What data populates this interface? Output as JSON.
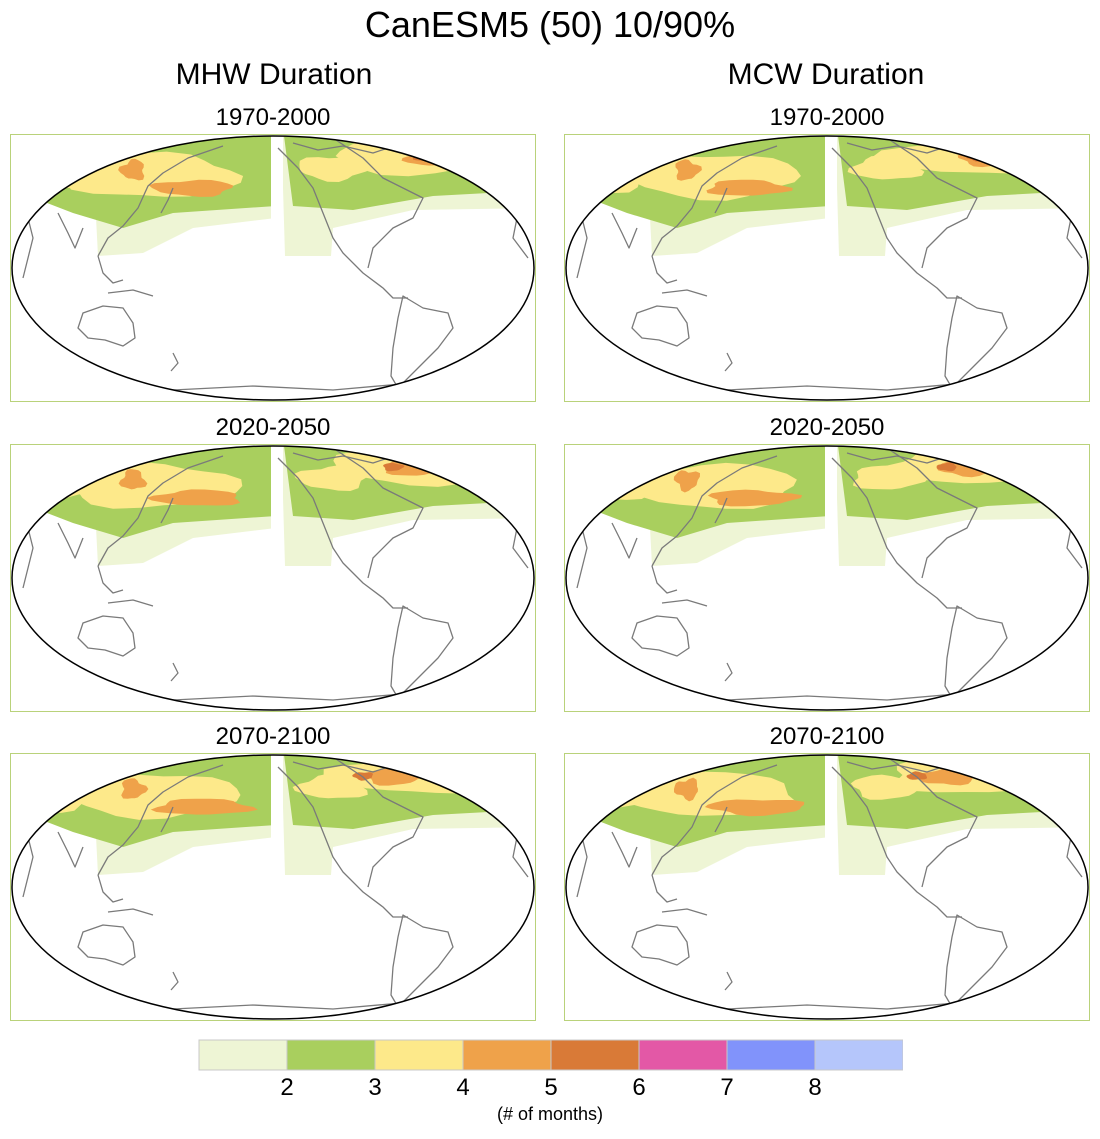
{
  "title": "CanESM5 (50) 10/90%",
  "columns": [
    {
      "title": "MHW Duration",
      "panels": [
        "1970-2000",
        "2020-2050",
        "2070-2100"
      ]
    },
    {
      "title": "MCW Duration",
      "panels": [
        "1970-2000",
        "2020-2050",
        "2070-2100"
      ]
    }
  ],
  "colorbar": {
    "colors": [
      "#eef5d5",
      "#a9cf5e",
      "#fde98a",
      "#efa24a",
      "#d97a37",
      "#e358a6",
      "#8193fb",
      "#b5c6fb"
    ],
    "tick_labels": [
      "2",
      "3",
      "4",
      "5",
      "6",
      "7",
      "8"
    ],
    "unit_label": "(# of months)"
  }
}
